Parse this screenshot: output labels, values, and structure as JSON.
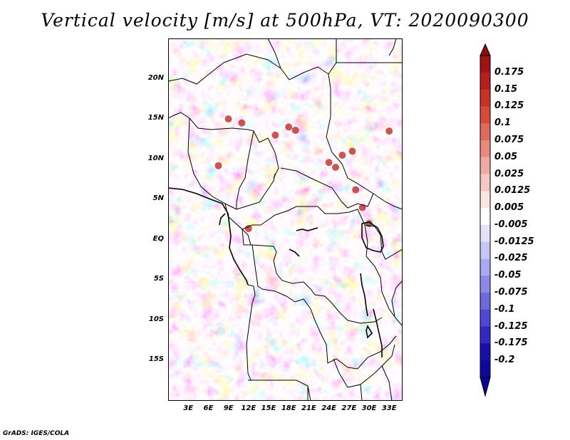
{
  "title": "Vertical velocity [m/s] at 500hPa, VT: 2020090300",
  "footer": "GrADS: IGES/COLA",
  "map": {
    "lat_range": [
      -20,
      25
    ],
    "lon_range": [
      0,
      35
    ],
    "lat_ticks": [
      "20N",
      "15N",
      "10N",
      "5N",
      "EQ",
      "5S",
      "10S",
      "15S"
    ],
    "lat_values": [
      20,
      15,
      10,
      5,
      0,
      -5,
      -10,
      -15
    ],
    "lon_ticks": [
      "3E",
      "6E",
      "9E",
      "12E",
      "15E",
      "18E",
      "21E",
      "24E",
      "27E",
      "30E",
      "33E"
    ],
    "lon_values": [
      3,
      6,
      9,
      12,
      15,
      18,
      21,
      24,
      27,
      30,
      33
    ],
    "field": "vertical velocity",
    "units": "m/s",
    "level": "500hPa"
  },
  "colorbar": {
    "levels": [
      "0.175",
      "0.15",
      "0.125",
      "0.1",
      "0.075",
      "0.05",
      "0.025",
      "0.0125",
      "0.005",
      "-0.005",
      "-0.0125",
      "-0.025",
      "-0.05",
      "-0.075",
      "-0.1",
      "-0.125",
      "-0.175",
      "-0.2"
    ],
    "colors": [
      "#a01418",
      "#b4201e",
      "#c83228",
      "#d64a3c",
      "#e06a5c",
      "#e88a80",
      "#f0aaa4",
      "#f6c8c4",
      "#fbe4e2",
      "#ffffff",
      "#e4e2fb",
      "#c8c6f6",
      "#aaa8f0",
      "#8c88e8",
      "#6e6ade",
      "#5048d2",
      "#3428c0",
      "#1a0ea8",
      "#10089a"
    ]
  }
}
